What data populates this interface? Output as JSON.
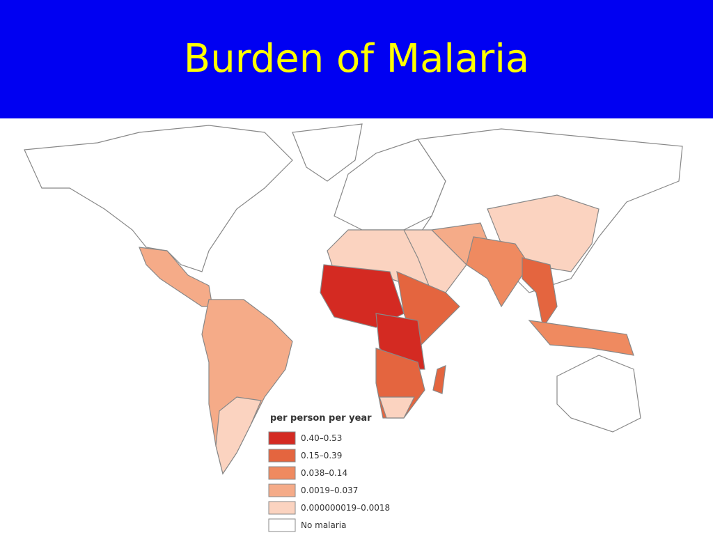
{
  "header": {
    "title": "Burden of Malaria"
  },
  "legend": {
    "title": "per person per year",
    "items": [
      {
        "label": "0.40–0.53",
        "color": "#d42a22"
      },
      {
        "label": "0.15–0.39",
        "color": "#e4653f"
      },
      {
        "label": "0.038–0.14",
        "color": "#ef8a60"
      },
      {
        "label": "0.0019–0.037",
        "color": "#f5ab88"
      },
      {
        "label": "0.000000019–0.0018",
        "color": "#fbd3c0"
      },
      {
        "label": "No malaria",
        "color": "#ffffff"
      }
    ]
  }
}
